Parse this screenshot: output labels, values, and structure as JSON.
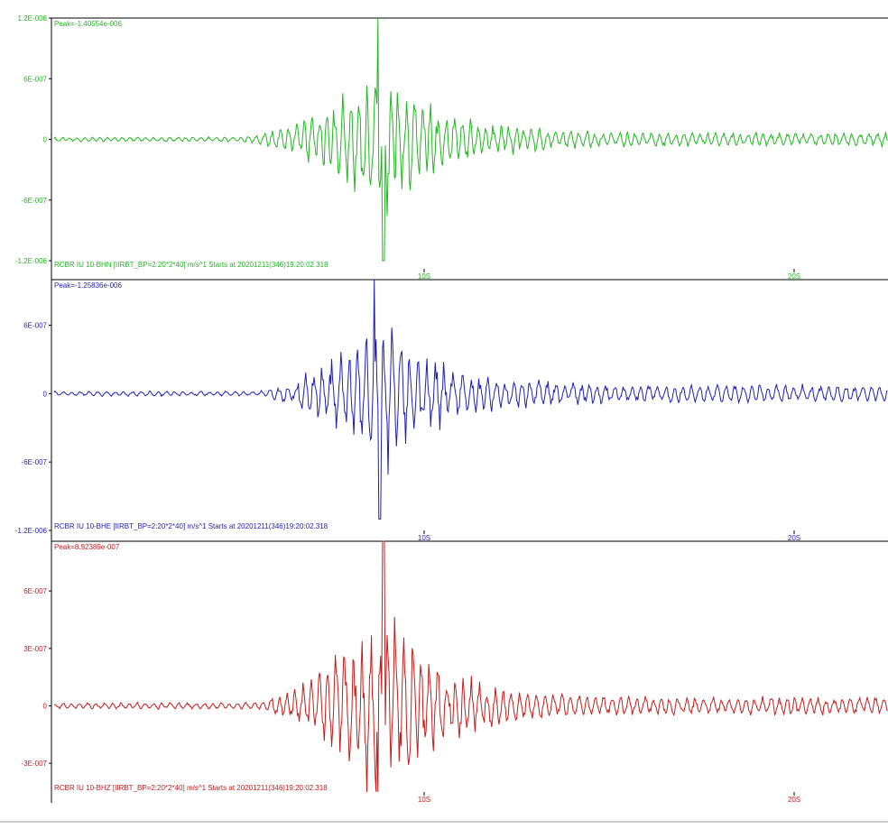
{
  "chart_data": [
    {
      "type": "line",
      "station_label": "RCBR IU 10-BHN  [IIRBT_BP=2:20*2*40] m/s^1 Starts at 20201211(346)19:20:02.318",
      "peak_label": "Peak=-1.40554e-006",
      "color": "#22b622",
      "ylim": [
        -1.28e-06,
        1.2e-06
      ],
      "y_ticks": [
        {
          "value": 1.2e-06,
          "label": "1.2E-006"
        },
        {
          "value": 6e-07,
          "label": "6E-007"
        },
        {
          "value": 0,
          "label": "0"
        },
        {
          "value": -6e-07,
          "label": "-6E-007"
        },
        {
          "value": -1.2e-06,
          "label": "-1.2E-006"
        }
      ],
      "x_ticks": [
        {
          "value": 10,
          "label": "10S"
        },
        {
          "value": 20,
          "label": "20S"
        }
      ],
      "series": [
        {
          "seed": 11,
          "onset_s": 5.0,
          "pre_amp": 2e-08,
          "peak_s": 8.9,
          "peak_amp": 1.2e-06,
          "coda_amp": 6e-08,
          "period_s": 0.22
        }
      ]
    },
    {
      "type": "line",
      "station_label": "RCBR IU 10-BHE  [IIRBT_BP=2:20*2*40] m/s^1 Starts at 20201211(346)19:20:02.318",
      "peak_label": "Peak=-1.25836e-006",
      "color": "#1f1fb0",
      "ylim": [
        -1.2e-06,
        1e-06
      ],
      "y_ticks": [
        {
          "value": 6e-07,
          "label": "6E-007"
        },
        {
          "value": 0,
          "label": "0"
        },
        {
          "value": -6e-07,
          "label": "-6E-007"
        },
        {
          "value": -1.2e-06,
          "label": "-1.2E-006"
        }
      ],
      "x_ticks": [
        {
          "value": 10,
          "label": "10S"
        },
        {
          "value": 20,
          "label": "20S"
        }
      ],
      "series": [
        {
          "seed": 23,
          "onset_s": 5.5,
          "pre_amp": 2e-08,
          "peak_s": 8.8,
          "peak_amp": 1.1e-06,
          "coda_amp": 7e-08,
          "period_s": 0.24
        }
      ]
    },
    {
      "type": "line",
      "station_label": "RCBR IU 10-BHZ  [IIRBT_BP=2:20*2*40] m/s^1 Starts at 20201211(346)19:20:02.318",
      "peak_label": "Peak=8.92389e-007",
      "color": "#c01e1e",
      "ylim": [
        -4.5e-07,
        8.6e-07
      ],
      "y_ticks": [
        {
          "value": 6e-07,
          "label": "6E-007"
        },
        {
          "value": 3e-07,
          "label": "3E-007"
        },
        {
          "value": 0,
          "label": "0"
        },
        {
          "value": -3e-07,
          "label": "-3E-007"
        }
      ],
      "x_ticks": [
        {
          "value": 10,
          "label": "10S"
        },
        {
          "value": 20,
          "label": "20S"
        }
      ],
      "series": [
        {
          "seed": 37,
          "onset_s": 5.4,
          "pre_amp": 1.5e-08,
          "peak_s": 8.9,
          "peak_amp": 8.9e-07,
          "coda_amp": 4e-08,
          "period_s": 0.23
        }
      ]
    }
  ]
}
